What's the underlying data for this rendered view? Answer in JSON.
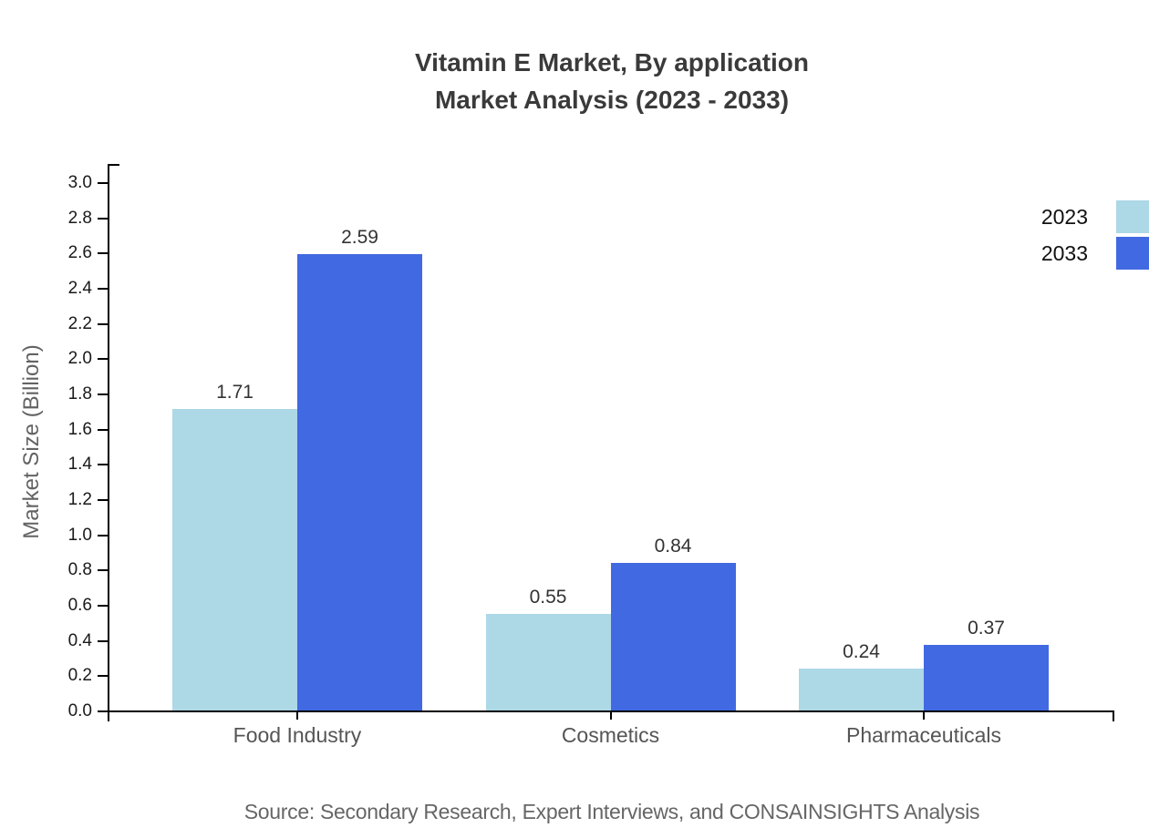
{
  "title": {
    "line1": "Vitamin E Market, By application",
    "line2": "Market Analysis (2023 - 2033)"
  },
  "source": "Source: Secondary Research, Expert Interviews, and CONSAINSIGHTS Analysis",
  "chart_data": {
    "type": "bar",
    "categories": [
      "Food Industry",
      "Cosmetics",
      "Pharmaceuticals"
    ],
    "series": [
      {
        "name": "2023",
        "color": "#ADD8E6",
        "values": [
          1.71,
          0.55,
          0.24
        ]
      },
      {
        "name": "2033",
        "color": "#4169E1",
        "values": [
          2.59,
          0.84,
          0.37
        ]
      }
    ],
    "title": "Vitamin E Market, By application Market Analysis (2023 - 2033)",
    "xlabel": "",
    "ylabel": "Market Size (Billion)",
    "ylim": [
      0.0,
      3.0
    ],
    "ytick_step": 0.2,
    "ytick_decimals": 1,
    "value_label_decimals": 2,
    "grid": false,
    "legend_position": "top-right",
    "axis_color": "#000000"
  }
}
